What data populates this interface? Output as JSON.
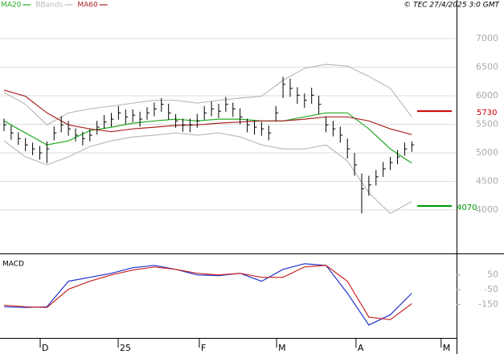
{
  "chart_data": {
    "type": "ohlc",
    "credit": "© TEC 27/4/2025 3:0 GMT",
    "xlim": [
      -0.56,
      63.26
    ],
    "xticks": [
      {
        "value": 5.06,
        "label": "D"
      },
      {
        "value": 15.96,
        "label": "25"
      },
      {
        "value": 27.3,
        "label": "F"
      },
      {
        "value": 38.1,
        "label": "M"
      },
      {
        "value": 49.2,
        "label": "A"
      },
      {
        "value": 61.1,
        "label": "M"
      }
    ],
    "ylim": [
      3240,
      7676
    ],
    "yticks": [
      4000,
      4500,
      5000,
      5500,
      6000,
      6500,
      7000
    ],
    "grid": true,
    "price": {
      "color": "#000000",
      "high": [
        5600,
        5480,
        5360,
        5260,
        5180,
        5120,
        5200,
        5460,
        5640,
        5560,
        5430,
        5370,
        5420,
        5560,
        5660,
        5700,
        5820,
        5760,
        5760,
        5720,
        5800,
        5880,
        5960,
        5860,
        5680,
        5600,
        5600,
        5680,
        5820,
        5900,
        5860,
        5980,
        5880,
        5780,
        5600,
        5570,
        5540,
        5480,
        5820,
        6330,
        6300,
        6150,
        6040,
        6140,
        6000,
        5640,
        5560,
        5460,
        5250,
        5000,
        4640,
        4600,
        4700,
        4840,
        4930,
        5050,
        5180,
        5200
      ],
      "low": [
        5380,
        5230,
        5140,
        5030,
        4960,
        4880,
        4820,
        5220,
        5360,
        5300,
        5200,
        5130,
        5200,
        5320,
        5420,
        5460,
        5580,
        5500,
        5540,
        5460,
        5580,
        5640,
        5720,
        5580,
        5440,
        5370,
        5360,
        5440,
        5580,
        5640,
        5610,
        5720,
        5630,
        5500,
        5360,
        5320,
        5300,
        5220,
        5560,
        5960,
        5980,
        5860,
        5790,
        5860,
        5680,
        5360,
        5290,
        5180,
        4900,
        4600,
        3940,
        4250,
        4430,
        4580,
        4700,
        4800,
        4950,
        5020
      ],
      "close": [
        5490,
        5350,
        5250,
        5140,
        5070,
        5000,
        5070,
        5350,
        5490,
        5420,
        5310,
        5250,
        5310,
        5450,
        5540,
        5590,
        5700,
        5630,
        5660,
        5590,
        5700,
        5770,
        5850,
        5700,
        5560,
        5490,
        5490,
        5560,
        5700,
        5770,
        5730,
        5850,
        5770,
        5630,
        5490,
        5450,
        5420,
        5350,
        5700,
        6200,
        6130,
        6010,
        5920,
        6010,
        5850,
        5490,
        5420,
        5310,
        5070,
        4790,
        4370,
        4440,
        4580,
        4720,
        4830,
        4930,
        5070,
        5140
      ]
    },
    "x": [
      0,
      3,
      6,
      9,
      12,
      15,
      18,
      21,
      24,
      27,
      30,
      33,
      36,
      39,
      42,
      45,
      48,
      51,
      54,
      57
    ],
    "series": [
      {
        "name": "MA20",
        "color": "#22aa22",
        "values": [
          5560,
          5350,
          5140,
          5210,
          5390,
          5450,
          5520,
          5560,
          5590,
          5560,
          5590,
          5590,
          5560,
          5560,
          5630,
          5700,
          5700,
          5420,
          5070,
          4820
        ]
      },
      {
        "name": "BBands",
        "color": "#bbbbbb",
        "values": [
          6060,
          5850,
          5490,
          5700,
          5770,
          5820,
          5870,
          5920,
          5920,
          5870,
          5920,
          5960,
          5990,
          6270,
          6480,
          6550,
          6520,
          6340,
          6130,
          5630
        ]
      },
      {
        "color": "#bbbbbb",
        "values": [
          5210,
          4930,
          4790,
          4930,
          5110,
          5210,
          5280,
          5310,
          5350,
          5310,
          5350,
          5280,
          5140,
          5070,
          5070,
          5140,
          4860,
          4300,
          3940,
          4150
        ]
      },
      {
        "name": "MA60",
        "color": "#aa2222",
        "values": [
          6100,
          5990,
          5700,
          5490,
          5420,
          5370,
          5420,
          5450,
          5480,
          5490,
          5520,
          5540,
          5560,
          5560,
          5590,
          5630,
          5630,
          5560,
          5420,
          5320
        ]
      }
    ],
    "levels": [
      {
        "value": 5730,
        "color": "#cc0000"
      },
      {
        "value": 4070,
        "color": "#009900"
      }
    ],
    "macd": {
      "title": "MACD",
      "ylim": [
        -377,
        185
      ],
      "yticks": [
        50,
        -50,
        -150
      ],
      "series": [
        {
          "color": "#2233cc",
          "values": [
            -166,
            -171,
            -166,
            7,
            34,
            61,
            99,
            115,
            88,
            50,
            45,
            61,
            7,
            88,
            126,
            115,
            -74,
            -290,
            -220,
            -74
          ]
        },
        {
          "color": "#cc2222",
          "values": [
            -155,
            -166,
            -171,
            -47,
            7,
            50,
            83,
            104,
            88,
            61,
            50,
            61,
            34,
            34,
            104,
            115,
            7,
            -236,
            -253,
            -145
          ]
        }
      ]
    }
  }
}
